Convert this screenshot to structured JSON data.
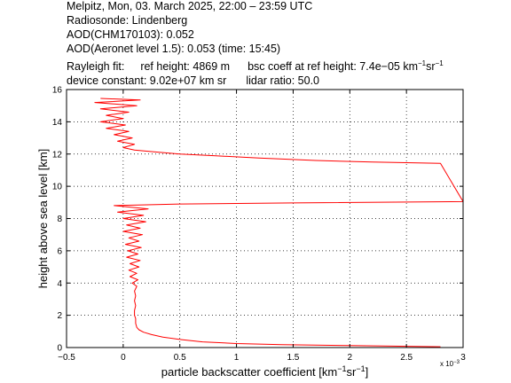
{
  "header": {
    "line1": "Melpitz, Mon, 03. March 2025, 22:00 – 23:59 UTC",
    "line2": "Radiosonde: Lindenberg",
    "line3": "AOD(CHM170103): 0.052",
    "line4": "AOD(Aeronet level 1.5): 0.053   (time: 15:45)",
    "rayleigh_label": "Rayleigh fit:",
    "ref_height": "ref height: 4869 m",
    "bsc_coeff_prefix": "bsc coeff at ref height: 7.4e−05 km",
    "bsc_coeff_sup1": "−1",
    "bsc_coeff_mid": "sr",
    "bsc_coeff_sup2": "−1",
    "device_constant": "device constant: 9.02e+07 km sr",
    "lidar_ratio": "lidar ratio: 50.0"
  },
  "axes": {
    "xlabel_main": "particle backscatter coefficient [km",
    "xlabel_sup1": "−1",
    "xlabel_mid": "sr",
    "xlabel_sup2": "−1",
    "xlabel_end": "]",
    "ylabel": "height above sea level [km]",
    "x_multiplier_base": "x 10",
    "x_multiplier_exp": "−3"
  },
  "chart_data": {
    "type": "line",
    "xlim": [
      -0.5,
      3
    ],
    "ylim": [
      0,
      16
    ],
    "x_scale_factor": "1e-3",
    "x_ticks": [
      -0.5,
      0,
      0.5,
      1,
      1.5,
      2,
      2.5,
      3
    ],
    "x_tick_labels": [
      "−0.5",
      "0",
      "0.5",
      "1",
      "1.5",
      "2",
      "2.5",
      "3"
    ],
    "y_ticks": [
      0,
      2,
      4,
      6,
      8,
      10,
      12,
      14,
      16
    ],
    "y_tick_labels": [
      "0",
      "2",
      "4",
      "6",
      "8",
      "10",
      "12",
      "14",
      "16"
    ],
    "grid": true,
    "grid_style": "dotted",
    "series": [
      {
        "color": "#ff0000",
        "points": [
          [
            2.8,
            0.05
          ],
          [
            2.0,
            0.12
          ],
          [
            1.4,
            0.18
          ],
          [
            1.0,
            0.25
          ],
          [
            0.7,
            0.35
          ],
          [
            0.5,
            0.5
          ],
          [
            0.35,
            0.65
          ],
          [
            0.25,
            0.8
          ],
          [
            0.18,
            0.95
          ],
          [
            0.14,
            1.1
          ],
          [
            0.12,
            1.25
          ],
          [
            0.11,
            1.5
          ],
          [
            0.11,
            1.8
          ],
          [
            0.1,
            2.0
          ],
          [
            0.1,
            2.3
          ],
          [
            0.11,
            2.6
          ],
          [
            0.1,
            2.9
          ],
          [
            0.11,
            3.2
          ],
          [
            0.1,
            3.5
          ],
          [
            0.12,
            3.8
          ],
          [
            0.08,
            4.0
          ],
          [
            0.13,
            4.2
          ],
          [
            0.06,
            4.4
          ],
          [
            0.12,
            4.6
          ],
          [
            0.05,
            4.8
          ],
          [
            0.14,
            5.0
          ],
          [
            0.06,
            5.2
          ],
          [
            0.15,
            5.4
          ],
          [
            0.03,
            5.6
          ],
          [
            0.13,
            5.8
          ],
          [
            0.04,
            6.0
          ],
          [
            0.16,
            6.2
          ],
          [
            0.02,
            6.4
          ],
          [
            0.14,
            6.6
          ],
          [
            0.05,
            6.8
          ],
          [
            0.17,
            7.0
          ],
          [
            0.0,
            7.2
          ],
          [
            0.15,
            7.4
          ],
          [
            0.03,
            7.6
          ],
          [
            0.2,
            7.8
          ],
          [
            0.0,
            8.0
          ],
          [
            0.18,
            8.2
          ],
          [
            -0.05,
            8.4
          ],
          [
            0.22,
            8.6
          ],
          [
            -0.08,
            8.8
          ],
          [
            0.5,
            8.9
          ],
          [
            1.5,
            8.97
          ],
          [
            3.0,
            9.05
          ],
          [
            2.8,
            11.42
          ],
          [
            2.2,
            11.5
          ],
          [
            1.7,
            11.6
          ],
          [
            1.2,
            11.75
          ],
          [
            0.8,
            11.9
          ],
          [
            0.5,
            12.0
          ],
          [
            0.25,
            12.15
          ],
          [
            0.1,
            12.25
          ],
          [
            0.0,
            12.4
          ],
          [
            0.1,
            12.6
          ],
          [
            -0.05,
            12.8
          ],
          [
            0.08,
            13.0
          ],
          [
            -0.08,
            13.2
          ],
          [
            0.05,
            13.4
          ],
          [
            -0.15,
            13.6
          ],
          [
            0.02,
            13.8
          ],
          [
            -0.2,
            14.0
          ],
          [
            0.0,
            14.2
          ],
          [
            -0.15,
            14.4
          ],
          [
            0.05,
            14.6
          ],
          [
            -0.2,
            14.8
          ],
          [
            0.12,
            15.0
          ],
          [
            -0.25,
            15.2
          ],
          [
            0.15,
            15.35
          ],
          [
            -0.2,
            15.45
          ]
        ]
      }
    ]
  }
}
